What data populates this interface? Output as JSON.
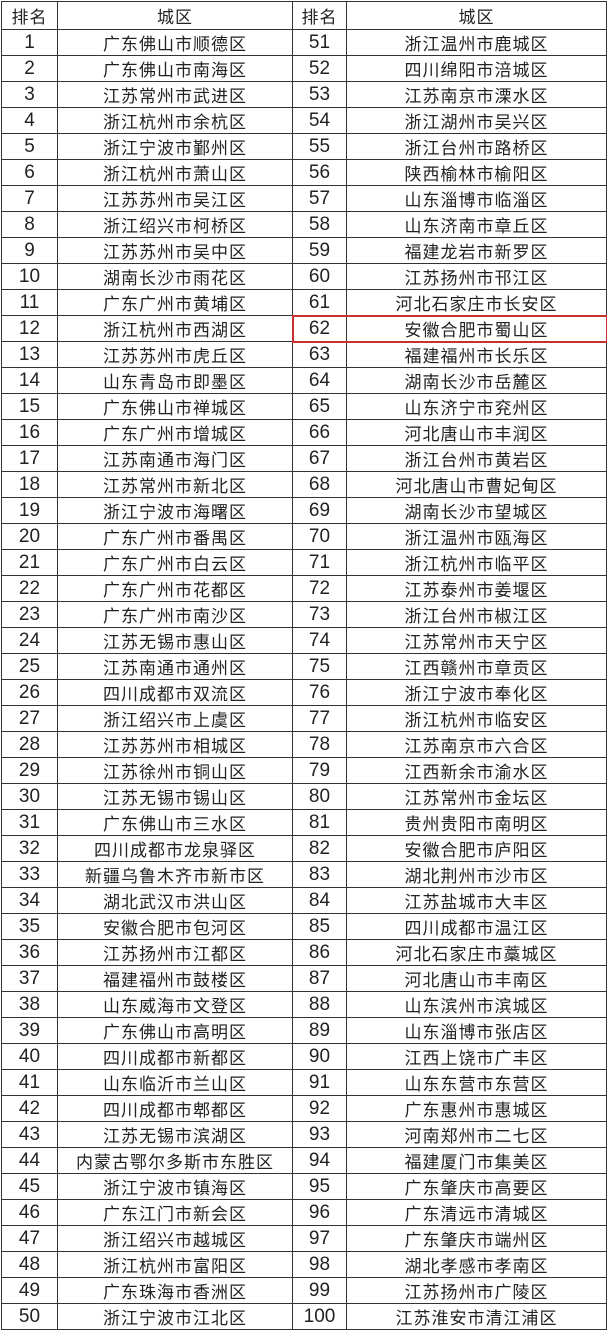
{
  "headers": [
    "排名",
    "城区",
    "排名",
    "城区"
  ],
  "highlight_color": "#c9302c",
  "highlighted_rank": 62,
  "left": [
    {
      "rank": "1",
      "district": "广东佛山市顺德区"
    },
    {
      "rank": "2",
      "district": "广东佛山市南海区"
    },
    {
      "rank": "3",
      "district": "江苏常州市武进区"
    },
    {
      "rank": "4",
      "district": "浙江杭州市余杭区"
    },
    {
      "rank": "5",
      "district": "浙江宁波市鄞州区"
    },
    {
      "rank": "6",
      "district": "浙江杭州市萧山区"
    },
    {
      "rank": "7",
      "district": "江苏苏州市吴江区"
    },
    {
      "rank": "8",
      "district": "浙江绍兴市柯桥区"
    },
    {
      "rank": "9",
      "district": "江苏苏州市吴中区"
    },
    {
      "rank": "10",
      "district": "湖南长沙市雨花区"
    },
    {
      "rank": "11",
      "district": "广东广州市黄埔区"
    },
    {
      "rank": "12",
      "district": "浙江杭州市西湖区"
    },
    {
      "rank": "13",
      "district": "江苏苏州市虎丘区"
    },
    {
      "rank": "14",
      "district": "山东青岛市即墨区"
    },
    {
      "rank": "15",
      "district": "广东佛山市禅城区"
    },
    {
      "rank": "16",
      "district": "广东广州市增城区"
    },
    {
      "rank": "17",
      "district": "江苏南通市海门区"
    },
    {
      "rank": "18",
      "district": "江苏常州市新北区"
    },
    {
      "rank": "19",
      "district": "浙江宁波市海曙区"
    },
    {
      "rank": "20",
      "district": "广东广州市番禺区"
    },
    {
      "rank": "21",
      "district": "广东广州市白云区"
    },
    {
      "rank": "22",
      "district": "广东广州市花都区"
    },
    {
      "rank": "23",
      "district": "广东广州市南沙区"
    },
    {
      "rank": "24",
      "district": "江苏无锡市惠山区"
    },
    {
      "rank": "25",
      "district": "江苏南通市通州区"
    },
    {
      "rank": "26",
      "district": "四川成都市双流区"
    },
    {
      "rank": "27",
      "district": "浙江绍兴市上虞区"
    },
    {
      "rank": "28",
      "district": "江苏苏州市相城区"
    },
    {
      "rank": "29",
      "district": "江苏徐州市铜山区"
    },
    {
      "rank": "30",
      "district": "江苏无锡市锡山区"
    },
    {
      "rank": "31",
      "district": "广东佛山市三水区"
    },
    {
      "rank": "32",
      "district": "四川成都市龙泉驿区"
    },
    {
      "rank": "33",
      "district": "新疆乌鲁木齐市新市区"
    },
    {
      "rank": "34",
      "district": "湖北武汉市洪山区"
    },
    {
      "rank": "35",
      "district": "安徽合肥市包河区"
    },
    {
      "rank": "36",
      "district": "江苏扬州市江都区"
    },
    {
      "rank": "37",
      "district": "福建福州市鼓楼区"
    },
    {
      "rank": "38",
      "district": "山东威海市文登区"
    },
    {
      "rank": "39",
      "district": "广东佛山市高明区"
    },
    {
      "rank": "40",
      "district": "四川成都市新都区"
    },
    {
      "rank": "41",
      "district": "山东临沂市兰山区"
    },
    {
      "rank": "42",
      "district": "四川成都市郫都区"
    },
    {
      "rank": "43",
      "district": "江苏无锡市滨湖区"
    },
    {
      "rank": "44",
      "district": "内蒙古鄂尔多斯市东胜区"
    },
    {
      "rank": "45",
      "district": "浙江宁波市镇海区"
    },
    {
      "rank": "46",
      "district": "广东江门市新会区"
    },
    {
      "rank": "47",
      "district": "浙江绍兴市越城区"
    },
    {
      "rank": "48",
      "district": "浙江杭州市富阳区"
    },
    {
      "rank": "49",
      "district": "广东珠海市香洲区"
    },
    {
      "rank": "50",
      "district": "浙江宁波市江北区"
    }
  ],
  "right": [
    {
      "rank": "51",
      "district": "浙江温州市鹿城区"
    },
    {
      "rank": "52",
      "district": "四川绵阳市涪城区"
    },
    {
      "rank": "53",
      "district": "江苏南京市溧水区"
    },
    {
      "rank": "54",
      "district": "浙江湖州市吴兴区"
    },
    {
      "rank": "55",
      "district": "浙江台州市路桥区"
    },
    {
      "rank": "56",
      "district": "陕西榆林市榆阳区"
    },
    {
      "rank": "57",
      "district": "山东淄博市临淄区"
    },
    {
      "rank": "58",
      "district": "山东济南市章丘区"
    },
    {
      "rank": "59",
      "district": "福建龙岩市新罗区"
    },
    {
      "rank": "60",
      "district": "江苏扬州市邗江区"
    },
    {
      "rank": "61",
      "district": "河北石家庄市长安区"
    },
    {
      "rank": "62",
      "district": "安徽合肥市蜀山区"
    },
    {
      "rank": "63",
      "district": "福建福州市长乐区"
    },
    {
      "rank": "64",
      "district": "湖南长沙市岳麓区"
    },
    {
      "rank": "65",
      "district": "山东济宁市兖州区"
    },
    {
      "rank": "66",
      "district": "河北唐山市丰润区"
    },
    {
      "rank": "67",
      "district": "浙江台州市黄岩区"
    },
    {
      "rank": "68",
      "district": "河北唐山市曹妃甸区"
    },
    {
      "rank": "69",
      "district": "湖南长沙市望城区"
    },
    {
      "rank": "70",
      "district": "浙江温州市瓯海区"
    },
    {
      "rank": "71",
      "district": "浙江杭州市临平区"
    },
    {
      "rank": "72",
      "district": "江苏泰州市姜堰区"
    },
    {
      "rank": "73",
      "district": "浙江台州市椒江区"
    },
    {
      "rank": "74",
      "district": "江苏常州市天宁区"
    },
    {
      "rank": "75",
      "district": "江西赣州市章贡区"
    },
    {
      "rank": "76",
      "district": "浙江宁波市奉化区"
    },
    {
      "rank": "77",
      "district": "浙江杭州市临安区"
    },
    {
      "rank": "78",
      "district": "江苏南京市六合区"
    },
    {
      "rank": "79",
      "district": "江西新余市渝水区"
    },
    {
      "rank": "80",
      "district": "江苏常州市金坛区"
    },
    {
      "rank": "81",
      "district": "贵州贵阳市南明区"
    },
    {
      "rank": "82",
      "district": "安徽合肥市庐阳区"
    },
    {
      "rank": "83",
      "district": "湖北荆州市沙市区"
    },
    {
      "rank": "84",
      "district": "江苏盐城市大丰区"
    },
    {
      "rank": "85",
      "district": "四川成都市温江区"
    },
    {
      "rank": "86",
      "district": "河北石家庄市藁城区"
    },
    {
      "rank": "87",
      "district": "河北唐山市丰南区"
    },
    {
      "rank": "88",
      "district": "山东滨州市滨城区"
    },
    {
      "rank": "89",
      "district": "山东淄博市张店区"
    },
    {
      "rank": "90",
      "district": "江西上饶市广丰区"
    },
    {
      "rank": "91",
      "district": "山东东营市东营区"
    },
    {
      "rank": "92",
      "district": "广东惠州市惠城区"
    },
    {
      "rank": "93",
      "district": "河南郑州市二七区"
    },
    {
      "rank": "94",
      "district": "福建厦门市集美区"
    },
    {
      "rank": "95",
      "district": "广东肇庆市高要区"
    },
    {
      "rank": "96",
      "district": "广东清远市清城区"
    },
    {
      "rank": "97",
      "district": "广东肇庆市端州区"
    },
    {
      "rank": "98",
      "district": "湖北孝感市孝南区"
    },
    {
      "rank": "99",
      "district": "江苏扬州市广陵区"
    },
    {
      "rank": "100",
      "district": "江苏淮安市清江浦区"
    }
  ]
}
